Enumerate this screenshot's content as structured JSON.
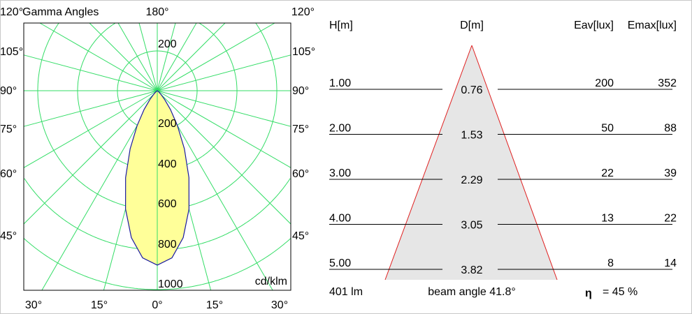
{
  "chart_data": [
    {
      "type": "polar",
      "title": "Gamma Angles",
      "unit": "cd/klm",
      "radial_ticks": [
        "200",
        "400",
        "600",
        "800",
        "1000"
      ],
      "top_radial_tick": "200",
      "angle_labels_top": [
        "120°",
        "180°",
        "120°"
      ],
      "angle_labels_left": [
        "105°",
        "90°",
        "75°",
        "60°",
        "45°"
      ],
      "angle_labels_right": [
        "105°",
        "90°",
        "75°",
        "60°",
        "45°"
      ],
      "angle_labels_bottom": [
        "30°",
        "15°",
        "0°",
        "15°",
        "30°"
      ],
      "grid": true,
      "grid_color": "#33dd66",
      "curve_color": "#1a1aa0",
      "fill_color": "#ffff99",
      "series": [
        {
          "angles": [
            0,
            5,
            10,
            15,
            20,
            25,
            30,
            35,
            40,
            45,
            50,
            60,
            90
          ],
          "values": [
            877,
            844,
            750,
            616,
            465,
            322,
            202,
            115,
            58,
            26,
            10,
            1,
            0
          ]
        }
      ]
    },
    {
      "type": "table",
      "headers": {
        "h": "H[m]",
        "d": "D[m]",
        "eav": "Eav[lux]",
        "emax": "Emax[lux]"
      },
      "rows": [
        {
          "h": "1.00",
          "d": "0.76",
          "eav": "200",
          "emax": "352"
        },
        {
          "h": "2.00",
          "d": "1.53",
          "eav": "50",
          "emax": "88"
        },
        {
          "h": "3.00",
          "d": "2.29",
          "eav": "22",
          "emax": "39"
        },
        {
          "h": "4.00",
          "d": "3.05",
          "eav": "13",
          "emax": "22"
        },
        {
          "h": "5.00",
          "d": "3.82",
          "eav": "8",
          "emax": "14"
        }
      ],
      "flux": "401 lm",
      "beam_angle": "beam angle 41.8°",
      "eta_symbol": "η",
      "efficiency": "= 45 %",
      "cone_color": "#e6e6e6",
      "cone_edge_color": "#e02020"
    }
  ]
}
